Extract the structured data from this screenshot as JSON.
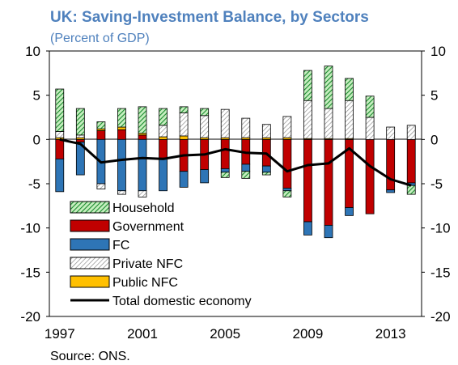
{
  "chart_data": {
    "type": "bar",
    "title": "UK: Saving-Investment Balance, by Sectors",
    "subtitle": "(Percent of GDP)",
    "source": "Source: ONS.",
    "x": [
      1997,
      1998,
      1999,
      2000,
      2001,
      2002,
      2003,
      2004,
      2005,
      2006,
      2007,
      2008,
      2009,
      2010,
      2011,
      2012,
      2013,
      2014
    ],
    "x_tick_labels": [
      "1997",
      "2001",
      "2005",
      "2009",
      "2013"
    ],
    "ylim": [
      -20,
      10
    ],
    "y_tick_labels": [
      "10",
      "5",
      "0",
      "-5",
      "-10",
      "-15",
      "-20"
    ],
    "grid": false,
    "legend_position": "lower-left",
    "series": [
      {
        "name": "Household",
        "kind": "bar",
        "color": "#1a8a2e",
        "pattern": "diag-green",
        "values": [
          4.8,
          3.0,
          0.8,
          2.1,
          3.0,
          1.9,
          0.7,
          0.8,
          -0.6,
          -0.8,
          -0.3,
          -0.7,
          3.4,
          4.8,
          2.5,
          2.4,
          0.0,
          -1.0
        ]
      },
      {
        "name": "Government",
        "kind": "bar",
        "color": "#c00000",
        "pattern": "solid",
        "values": [
          -2.2,
          -0.3,
          1.0,
          1.1,
          0.5,
          -2.1,
          -3.6,
          -3.4,
          -3.3,
          -2.8,
          -3.0,
          -5.5,
          -9.3,
          -9.7,
          -7.7,
          -8.4,
          -5.7,
          -4.9
        ]
      },
      {
        "name": "FC",
        "kind": "bar",
        "color": "#2e75b6",
        "pattern": "solid",
        "values": [
          -3.7,
          -3.7,
          -5.0,
          -5.8,
          -5.8,
          -3.7,
          -1.8,
          -1.5,
          -0.4,
          -0.8,
          -0.7,
          -0.3,
          -1.5,
          -1.4,
          -0.9,
          0.0,
          -0.3,
          -0.3
        ]
      },
      {
        "name": "Private NFC",
        "kind": "bar",
        "color": "#7f7f7f",
        "pattern": "diag-grey",
        "values": [
          0.7,
          0.3,
          -0.6,
          -0.4,
          -0.7,
          1.3,
          2.6,
          2.5,
          3.2,
          2.2,
          1.5,
          2.4,
          4.3,
          3.4,
          4.3,
          2.5,
          1.4,
          1.6
        ]
      },
      {
        "name": "Public NFC",
        "kind": "bar",
        "color": "#ffc000",
        "pattern": "solid",
        "values": [
          0.2,
          0.2,
          0.2,
          0.3,
          0.2,
          0.3,
          0.4,
          0.2,
          0.2,
          0.2,
          0.2,
          0.2,
          0.1,
          0.1,
          0.1,
          0.0,
          0.0,
          0.0
        ]
      },
      {
        "name": "Total domestic economy",
        "kind": "line",
        "color": "#000000",
        "values": [
          0.0,
          -0.5,
          -2.6,
          -2.3,
          -2.1,
          -2.2,
          -1.8,
          -1.7,
          -1.1,
          -1.5,
          -1.6,
          -3.6,
          -2.9,
          -2.7,
          -1.0,
          -3.0,
          -4.5,
          -5.2
        ]
      }
    ]
  }
}
